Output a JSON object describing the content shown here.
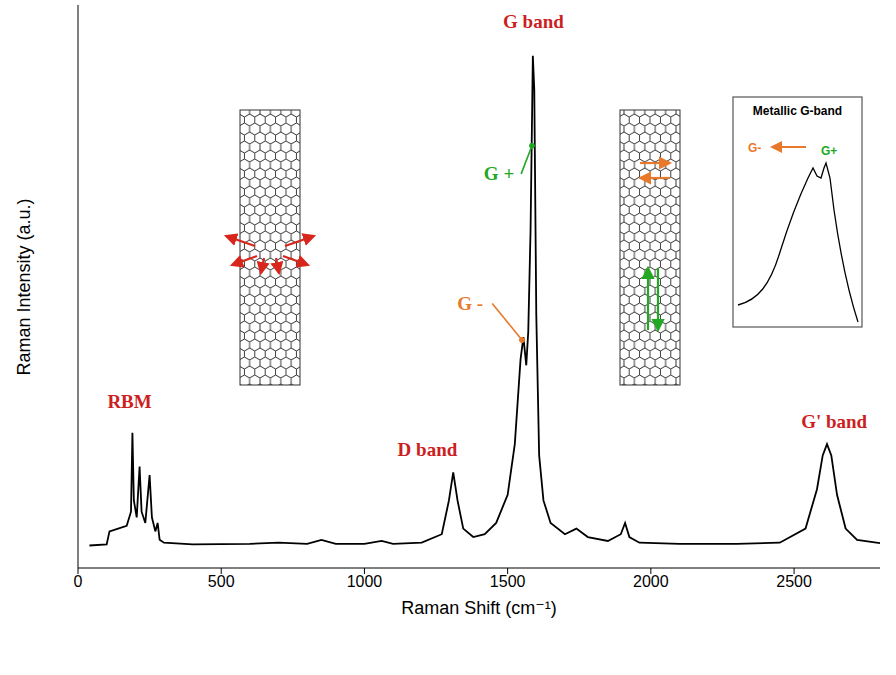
{
  "chart_data": {
    "type": "line",
    "x_label": "Raman Shift (cm⁻¹)",
    "y_label": "Raman Intensity (a.u.)",
    "x": [
      40,
      100,
      110,
      140,
      170,
      185,
      190,
      195,
      205,
      215,
      222,
      235,
      250,
      258,
      270,
      278,
      285,
      300,
      400,
      600,
      700,
      800,
      850,
      900,
      1000,
      1060,
      1100,
      1200,
      1270,
      1295,
      1310,
      1325,
      1345,
      1380,
      1420,
      1460,
      1500,
      1525,
      1545,
      1555,
      1565,
      1572,
      1580,
      1588,
      1593,
      1600,
      1610,
      1625,
      1650,
      1700,
      1740,
      1780,
      1850,
      1895,
      1910,
      1925,
      1960,
      2100,
      2300,
      2450,
      2540,
      2580,
      2600,
      2615,
      2630,
      2650,
      2680,
      2720,
      2800
    ],
    "values": [
      4.0,
      4.2,
      6.5,
      7,
      7.5,
      10,
      24,
      12,
      9,
      18,
      10,
      8,
      16.5,
      9,
      6.5,
      8,
      5,
      4.5,
      4.2,
      4.3,
      4.5,
      4.3,
      5,
      4.3,
      4.3,
      4.8,
      4.3,
      4.5,
      6,
      12,
      17,
      12,
      7,
      5.5,
      6,
      8,
      13,
      22,
      37,
      41,
      36,
      42,
      60,
      91,
      85,
      45,
      20,
      12,
      8,
      6,
      7,
      5.5,
      4.8,
      6,
      8,
      5.5,
      4.5,
      4.3,
      4.3,
      4.5,
      7,
      14,
      20,
      22,
      20,
      13,
      7,
      5,
      4.4
    ],
    "color": "#000000",
    "xlim": [
      0,
      2800
    ],
    "xticks": [
      0,
      500,
      1000,
      1500,
      2000,
      2500
    ],
    "ylim": [
      0,
      100
    ],
    "yticks": [],
    "tick_labels": "x",
    "grid": false,
    "annotations": [
      {
        "text": "RBM",
        "x": 180,
        "y": 29.5,
        "color": "#cc1f1f"
      },
      {
        "text": "D band",
        "x": 1220,
        "y": 21,
        "color": "#cc1f1f"
      },
      {
        "text": "G band",
        "x": 1590,
        "y": 97,
        "color": "#cc1f1f"
      },
      {
        "text": "G +",
        "x": 1470,
        "y": 70,
        "color": "#22a822",
        "target": [
          1585,
          75
        ]
      },
      {
        "text": "G -",
        "x": 1369,
        "y": 47,
        "color": "#e8792b",
        "target": [
          1550,
          40.5
        ]
      },
      {
        "text": "G' band",
        "x": 2640,
        "y": 26,
        "color": "#cc1f1f"
      }
    ],
    "inset": {
      "title": "Metallic G-band",
      "labels": [
        {
          "text": "G-",
          "color": "#e8792b"
        },
        {
          "text": "G+",
          "color": "#22a822"
        }
      ]
    }
  }
}
